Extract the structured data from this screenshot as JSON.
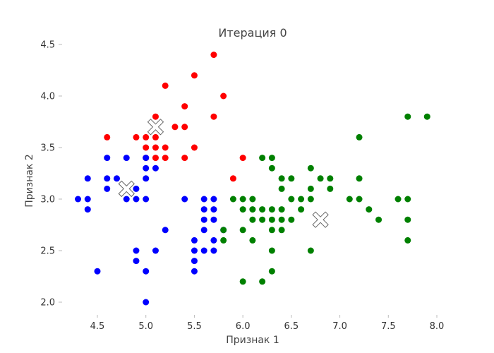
{
  "chart_data": {
    "type": "scatter",
    "title": "Итерация 0",
    "xlabel": "Признак 1",
    "ylabel": "Признак 2",
    "xlim": [
      4.15,
      8.1
    ],
    "ylim": [
      1.9,
      4.55
    ],
    "grid": false,
    "legend": "none",
    "x_ticks": [
      4.5,
      5.0,
      5.5,
      6.0,
      6.5,
      7.0,
      7.5,
      8.0
    ],
    "x_tick_labels": [
      "4.5",
      "5.0",
      "5.5",
      "6.0",
      "6.5",
      "7.0",
      "7.5",
      "8.0"
    ],
    "y_ticks": [
      2.0,
      2.5,
      3.0,
      3.5,
      4.0,
      4.5
    ],
    "y_tick_labels": [
      "2.0",
      "2.5",
      "3.0",
      "3.5",
      "4.0",
      "4.5"
    ],
    "series": [
      {
        "color": "#ff0000",
        "points": [
          [
            5.7,
            4.4
          ],
          [
            5.5,
            4.2
          ],
          [
            5.2,
            4.1
          ],
          [
            5.8,
            4.0
          ],
          [
            5.4,
            3.9
          ],
          [
            5.1,
            3.8
          ],
          [
            5.7,
            3.8
          ],
          [
            5.3,
            3.7
          ],
          [
            5.4,
            3.7
          ],
          [
            5.1,
            3.7
          ],
          [
            4.6,
            3.6
          ],
          [
            5.0,
            3.6
          ],
          [
            4.9,
            3.6
          ],
          [
            5.1,
            3.6
          ],
          [
            5.0,
            3.5
          ],
          [
            5.1,
            3.5
          ],
          [
            5.2,
            3.5
          ],
          [
            5.5,
            3.5
          ],
          [
            5.0,
            3.4
          ],
          [
            5.1,
            3.4
          ],
          [
            5.2,
            3.4
          ],
          [
            5.4,
            3.4
          ],
          [
            6.0,
            3.4
          ],
          [
            5.9,
            3.2
          ]
        ]
      },
      {
        "color": "#0000ff",
        "points": [
          [
            4.6,
            3.4
          ],
          [
            4.8,
            3.4
          ],
          [
            5.0,
            3.4
          ],
          [
            5.0,
            3.3
          ],
          [
            5.1,
            3.3
          ],
          [
            4.4,
            3.2
          ],
          [
            4.6,
            3.2
          ],
          [
            4.7,
            3.2
          ],
          [
            5.0,
            3.2
          ],
          [
            4.6,
            3.1
          ],
          [
            4.9,
            3.1
          ],
          [
            4.8,
            3.1
          ],
          [
            4.3,
            3.0
          ],
          [
            4.4,
            3.0
          ],
          [
            4.8,
            3.0
          ],
          [
            4.9,
            3.0
          ],
          [
            5.0,
            3.0
          ],
          [
            5.4,
            3.0
          ],
          [
            5.6,
            3.0
          ],
          [
            5.7,
            3.0
          ],
          [
            4.4,
            2.9
          ],
          [
            5.6,
            2.9
          ],
          [
            5.7,
            2.9
          ],
          [
            5.6,
            2.8
          ],
          [
            5.7,
            2.8
          ],
          [
            5.2,
            2.7
          ],
          [
            5.6,
            2.7
          ],
          [
            5.8,
            2.7
          ],
          [
            5.5,
            2.6
          ],
          [
            5.7,
            2.6
          ],
          [
            4.9,
            2.5
          ],
          [
            5.1,
            2.5
          ],
          [
            5.5,
            2.5
          ],
          [
            5.6,
            2.5
          ],
          [
            5.7,
            2.5
          ],
          [
            4.9,
            2.4
          ],
          [
            5.5,
            2.4
          ],
          [
            4.5,
            2.3
          ],
          [
            5.0,
            2.3
          ],
          [
            5.5,
            2.3
          ],
          [
            5.0,
            2.0
          ]
        ]
      },
      {
        "color": "#008000",
        "points": [
          [
            7.7,
            3.8
          ],
          [
            7.9,
            3.8
          ],
          [
            7.2,
            3.6
          ],
          [
            6.2,
            3.4
          ],
          [
            6.3,
            3.4
          ],
          [
            6.3,
            3.3
          ],
          [
            6.7,
            3.3
          ],
          [
            6.4,
            3.2
          ],
          [
            6.5,
            3.2
          ],
          [
            6.8,
            3.2
          ],
          [
            6.9,
            3.2
          ],
          [
            7.2,
            3.2
          ],
          [
            6.4,
            3.1
          ],
          [
            6.7,
            3.1
          ],
          [
            6.9,
            3.1
          ],
          [
            5.9,
            3.0
          ],
          [
            6.0,
            3.0
          ],
          [
            6.1,
            3.0
          ],
          [
            6.5,
            3.0
          ],
          [
            6.6,
            3.0
          ],
          [
            6.7,
            3.0
          ],
          [
            7.1,
            3.0
          ],
          [
            7.2,
            3.0
          ],
          [
            7.6,
            3.0
          ],
          [
            7.7,
            3.0
          ],
          [
            6.0,
            2.9
          ],
          [
            6.1,
            2.9
          ],
          [
            6.2,
            2.9
          ],
          [
            6.3,
            2.9
          ],
          [
            6.4,
            2.9
          ],
          [
            6.6,
            2.9
          ],
          [
            7.3,
            2.9
          ],
          [
            6.1,
            2.8
          ],
          [
            6.2,
            2.8
          ],
          [
            6.3,
            2.8
          ],
          [
            6.4,
            2.8
          ],
          [
            6.5,
            2.8
          ],
          [
            7.4,
            2.8
          ],
          [
            7.7,
            2.8
          ],
          [
            5.8,
            2.7
          ],
          [
            6.0,
            2.7
          ],
          [
            6.3,
            2.7
          ],
          [
            6.4,
            2.7
          ],
          [
            5.8,
            2.6
          ],
          [
            6.1,
            2.6
          ],
          [
            7.7,
            2.6
          ],
          [
            6.3,
            2.5
          ],
          [
            6.7,
            2.5
          ],
          [
            6.3,
            2.3
          ],
          [
            6.0,
            2.2
          ],
          [
            6.2,
            2.2
          ]
        ]
      }
    ],
    "centroids": [
      [
        5.1,
        3.7
      ],
      [
        4.8,
        3.1
      ],
      [
        6.8,
        2.8
      ]
    ]
  }
}
